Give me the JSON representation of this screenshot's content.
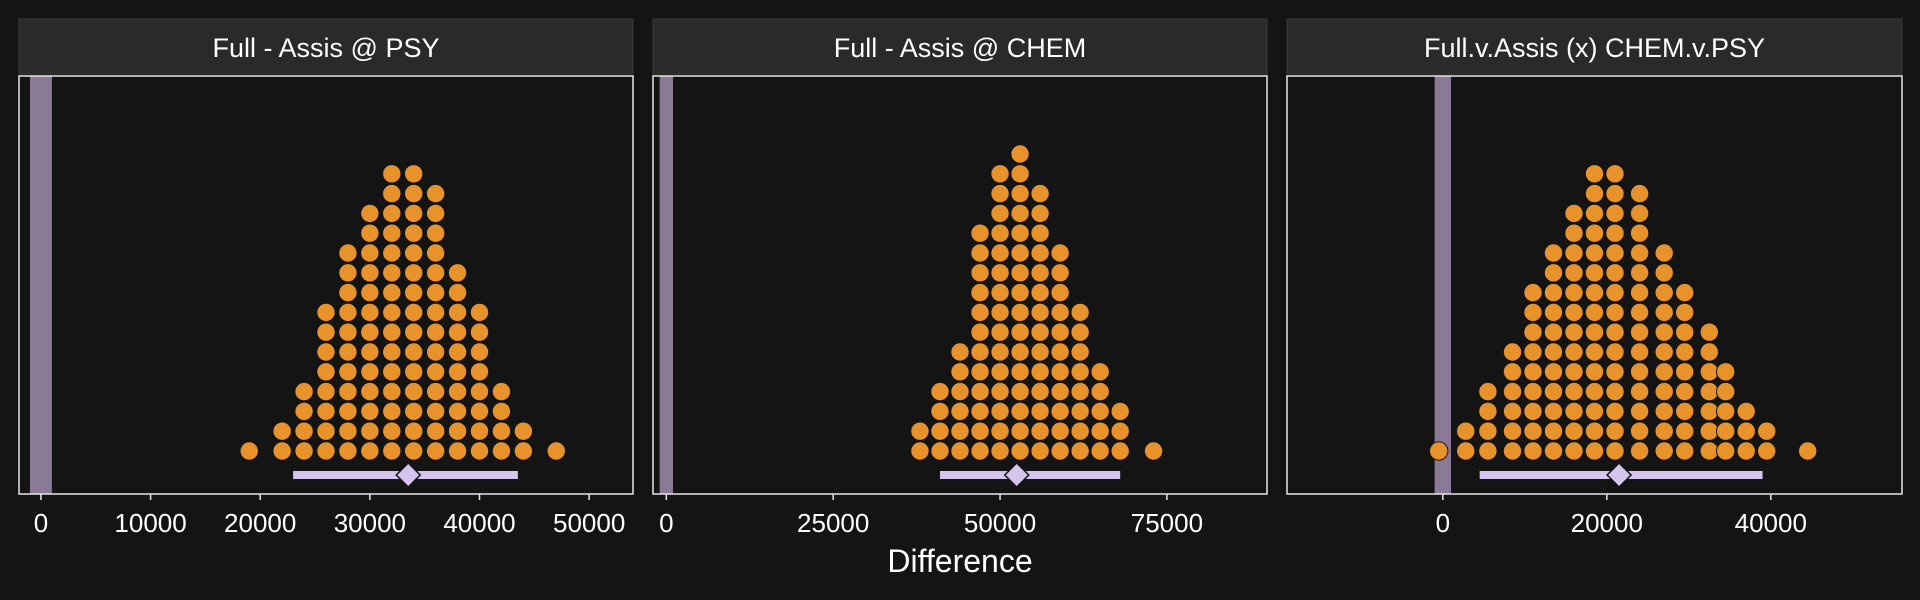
{
  "figure": {
    "xlabel": "Difference",
    "colors": {
      "background": "#141414",
      "panel_border": "#e6e6e6",
      "strip_fill": "#2a2a2a",
      "text": "#ffffff",
      "dots": "#e8922b",
      "rope_band": "#8a7a95",
      "interval": "#d4c4ee",
      "point_estimate": "#d4c4ee"
    }
  },
  "chart_data": [
    {
      "type": "dotplot",
      "title": "Full - Assis @ PSY",
      "xlim": [
        -2000,
        54000
      ],
      "xticks": [
        0,
        10000,
        20000,
        30000,
        40000,
        50000
      ],
      "rope": [
        -1000,
        1000
      ],
      "interval": [
        23000,
        43500
      ],
      "point_estimate": 33500,
      "bin_width": 2000,
      "dot_columns": [
        {
          "x": 19000,
          "count": 1
        },
        {
          "x": 22000,
          "count": 2
        },
        {
          "x": 24000,
          "count": 4
        },
        {
          "x": 26000,
          "count": 8
        },
        {
          "x": 28000,
          "count": 11
        },
        {
          "x": 30000,
          "count": 13
        },
        {
          "x": 32000,
          "count": 15
        },
        {
          "x": 34000,
          "count": 15
        },
        {
          "x": 36000,
          "count": 14
        },
        {
          "x": 38000,
          "count": 10
        },
        {
          "x": 40000,
          "count": 8
        },
        {
          "x": 42000,
          "count": 4
        },
        {
          "x": 44000,
          "count": 2
        },
        {
          "x": 47000,
          "count": 1
        }
      ]
    },
    {
      "type": "dotplot",
      "title": "Full - Assis @ CHEM",
      "xlim": [
        -2000,
        90000
      ],
      "xticks": [
        0,
        25000,
        50000,
        75000
      ],
      "rope": [
        -1000,
        1000
      ],
      "interval": [
        41000,
        68000
      ],
      "point_estimate": 52500,
      "bin_width": 3000,
      "dot_columns": [
        {
          "x": 38000,
          "count": 2
        },
        {
          "x": 41000,
          "count": 4
        },
        {
          "x": 44000,
          "count": 6
        },
        {
          "x": 47000,
          "count": 12
        },
        {
          "x": 50000,
          "count": 15
        },
        {
          "x": 53000,
          "count": 16
        },
        {
          "x": 56000,
          "count": 14
        },
        {
          "x": 59000,
          "count": 11
        },
        {
          "x": 62000,
          "count": 8
        },
        {
          "x": 65000,
          "count": 5
        },
        {
          "x": 68000,
          "count": 3
        },
        {
          "x": 73000,
          "count": 1
        }
      ]
    },
    {
      "type": "dotplot",
      "title": "Full.v.Assis (x) CHEM.v.PSY",
      "xlim": [
        -19000,
        56000
      ],
      "xticks": [
        0,
        20000,
        40000
      ],
      "rope": [
        -1000,
        1000
      ],
      "interval": [
        4500,
        39000
      ],
      "point_estimate": 21500,
      "bin_width": 2700,
      "dot_columns": [
        {
          "x": -500,
          "count": 1
        },
        {
          "x": 2800,
          "count": 2
        },
        {
          "x": 5500,
          "count": 4
        },
        {
          "x": 8500,
          "count": 6
        },
        {
          "x": 11000,
          "count": 9
        },
        {
          "x": 13500,
          "count": 11
        },
        {
          "x": 16000,
          "count": 13
        },
        {
          "x": 18500,
          "count": 15
        },
        {
          "x": 21000,
          "count": 15
        },
        {
          "x": 24000,
          "count": 14
        },
        {
          "x": 27000,
          "count": 11
        },
        {
          "x": 29500,
          "count": 9
        },
        {
          "x": 32500,
          "count": 7
        },
        {
          "x": 34500,
          "count": 5
        },
        {
          "x": 37000,
          "count": 3
        },
        {
          "x": 39500,
          "count": 2
        },
        {
          "x": 44500,
          "count": 1
        }
      ]
    }
  ]
}
